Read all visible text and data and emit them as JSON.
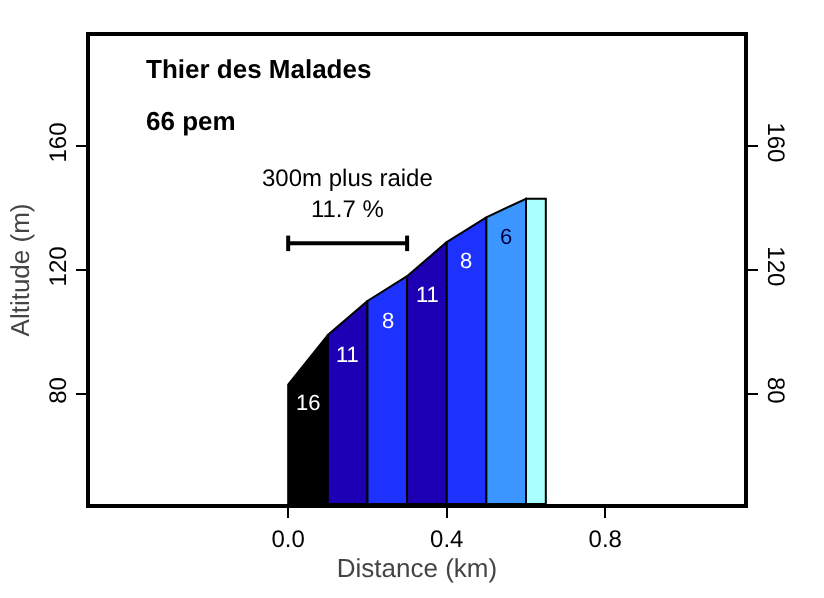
{
  "chart_data": {
    "type": "area",
    "title": "Thier des Malades",
    "subtitle": "66 pem",
    "xlabel": "Distance (km)",
    "ylabel": "Altitude (m)",
    "xlim": [
      -0.5,
      1.15
    ],
    "xticks": [
      {
        "value": 0,
        "label": "0.0"
      },
      0.4,
      0.8
    ],
    "ylim": [
      44.5,
      195.5
    ],
    "yticks": [
      80,
      120,
      160
    ],
    "y2lim": [
      44.5,
      195.5
    ],
    "y2ticks": [
      80,
      120,
      160
    ],
    "grid": false,
    "line_style": "solid",
    "series": [
      {
        "color": "#000000",
        "x": [
          0,
          0.1
        ],
        "values": [
          83,
          99
        ]
      },
      {
        "color": "#1e00b4",
        "x": [
          0.1,
          0.2
        ],
        "values": [
          99,
          110
        ]
      },
      {
        "color": "#1e32ff",
        "x": [
          0.2,
          0.3
        ],
        "values": [
          110,
          118
        ]
      },
      {
        "color": "#1e00b4",
        "x": [
          0.3,
          0.4
        ],
        "values": [
          118,
          129
        ]
      },
      {
        "color": "#1e32ff",
        "x": [
          0.4,
          0.5
        ],
        "values": [
          129,
          137
        ]
      },
      {
        "color": "#3c96ff",
        "x": [
          0.5,
          0.6
        ],
        "values": [
          137,
          143
        ]
      },
      {
        "color": "#aaffff",
        "x": [
          0.6,
          0.65
        ],
        "values": [
          143,
          143
        ]
      },
      {
        "type": "line",
        "color": "#000000",
        "x": [
          0,
          0.3
        ],
        "values": [
          128.6,
          128.6
        ],
        "errors": [
          2.5,
          2.5
        ]
      }
    ],
    "annotations": [
      "300m plus raide\n11.7 %",
      "16",
      "11",
      "8",
      "11",
      "8",
      "6"
    ]
  }
}
